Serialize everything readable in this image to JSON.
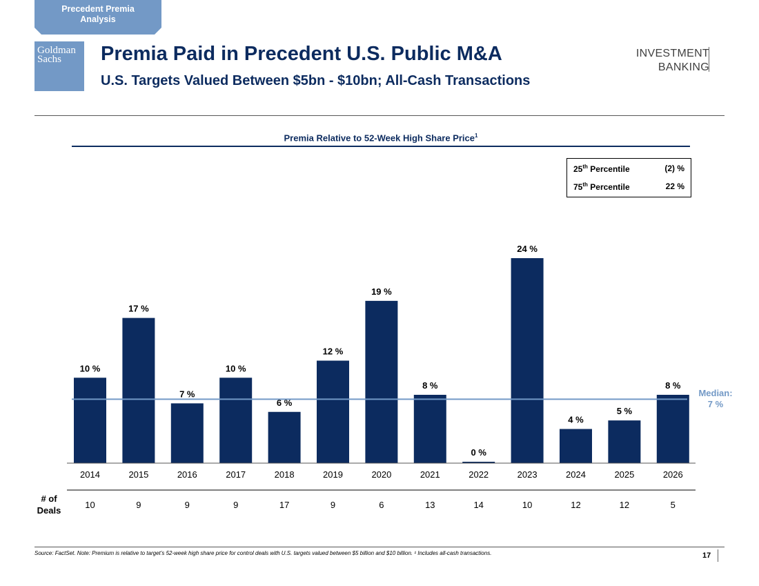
{
  "section_tab": {
    "line1": "Precedent Premia",
    "line2": "Analysis"
  },
  "logo": {
    "line1": "Goldman",
    "line2": "Sachs"
  },
  "header": {
    "title": "Premia Paid in Precedent U.S. Public M&A",
    "subtitle": "U.S. Targets Valued Between $5bn - $10bn; All-Cash Transactions",
    "division_line1": "INVESTMENT",
    "division_line2": "BANKING"
  },
  "percentiles": [
    {
      "rank": "25",
      "suffix": "th",
      "label": "Percentile",
      "value": "(2) %"
    },
    {
      "rank": "75",
      "suffix": "th",
      "label": "Percentile",
      "value": "22 %"
    }
  ],
  "deals_label_line1": "# of",
  "deals_label_line2": "Deals",
  "median_label_line1": "Median:",
  "median_label_line2": "7 %",
  "footnote": "Source: FactSet. Note: Premium is relative to target’s 52-week high share price for control deals with U.S. targets valued between $5 billion and $10 billion. ¹ Includes all-cash transactions.",
  "page_number": "17",
  "colors": {
    "bar": "#0c2b5f",
    "median": "#7399c6",
    "brand": "#0c2b5f"
  },
  "chart_data": {
    "type": "bar",
    "title": "Premia Relative to 52-Week High Share Price",
    "title_footnote_marker": "1",
    "categories": [
      "2014",
      "2015",
      "2016",
      "2017",
      "2018",
      "2019",
      "2020",
      "2021",
      "2022",
      "2023",
      "2024",
      "2025",
      "2026"
    ],
    "values": [
      10,
      17,
      7,
      10,
      6,
      12,
      19,
      8,
      0,
      24,
      4,
      5,
      8
    ],
    "labels": [
      "10 %",
      "17 %",
      "7 %",
      "10 %",
      "6 %",
      "12 %",
      "19 %",
      "8 %",
      "0 %",
      "24 %",
      "4 %",
      "5 %",
      "8 %"
    ],
    "deals": [
      "10",
      "9",
      "9",
      "9",
      "17",
      "9",
      "6",
      "13",
      "14",
      "10",
      "12",
      "12",
      "5"
    ],
    "median": 7,
    "ylim": [
      0,
      24.5
    ],
    "xlabel": "",
    "ylabel": ""
  }
}
